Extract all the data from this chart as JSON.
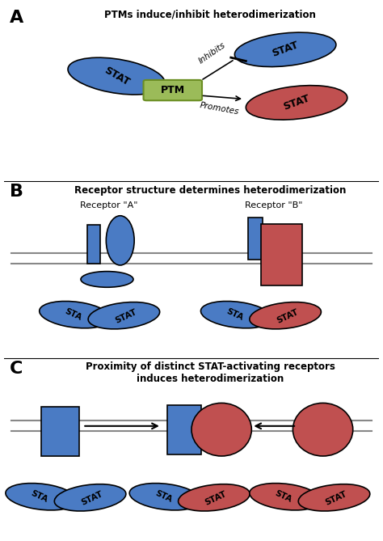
{
  "blue_color": "#4A7BC4",
  "red_color": "#C05050",
  "green_color": "#9BBB59",
  "green_border": "#6B8E23",
  "bg_color": "#FFFFFF",
  "line_color": "#000000",
  "gray_line": "#888888",
  "panel_A_title": "PTMs induce/inhibit heterodimerization",
  "panel_B_title": "Receptor structure determines heterodimerization",
  "panel_C_title": "Proximity of distinct STAT-activating receptors\ninduces heterodimerization",
  "label_A": "A",
  "label_B": "B",
  "label_C": "C",
  "inhibits_text": "Inhibits",
  "promotes_text": "Promotes",
  "ptm_text": "PTM",
  "stat_text": "STAT",
  "sta_text": "STA",
  "receptor_a_text": "Receptor \"A\"",
  "receptor_b_text": "Receptor \"B\""
}
